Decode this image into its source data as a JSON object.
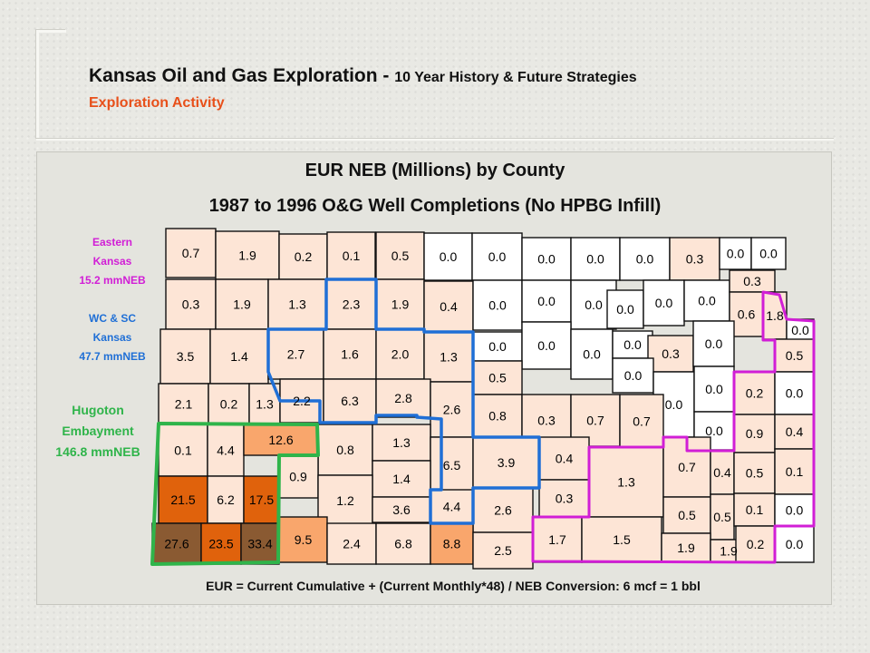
{
  "title": {
    "main": "Kansas Oil and Gas Exploration - ",
    "sub": "10 Year History & Future Strategies",
    "subtitle": "Exploration Activity"
  },
  "map": {
    "title_line1": "EUR NEB (Millions) by County",
    "title_line2": "1987 to 1996 O&G Well Completions (No HPBG Infill)",
    "formula": "EUR = Current Cumulative + (Current Monthly*48) / NEB Conversion: 6 mcf = 1 bbl"
  },
  "regions": {
    "eastern": {
      "lines": [
        "Eastern",
        "Kansas",
        "15.2 mmNEB"
      ],
      "color": "#d11ed6"
    },
    "wcsc": {
      "lines": [
        "WC & SC",
        "Kansas",
        "47.7 mmNEB"
      ],
      "color": "#1f6fd6"
    },
    "hugoton": {
      "lines": [
        "Hugoton",
        "Embayment",
        "146.8 mmNEB"
      ],
      "color": "#2fb44a"
    }
  },
  "legend_colors": {
    "none": "#ffffff",
    "low": "#fde5d6",
    "mid": "#f9a66c",
    "high": "#e0620c",
    "top": "#8a5a32"
  },
  "counties": [
    {
      "value": "0.7",
      "level": "low"
    },
    {
      "value": "1.9",
      "level": "low"
    },
    {
      "value": "0.2",
      "level": "low"
    },
    {
      "value": "0.1",
      "level": "low"
    },
    {
      "value": "0.5",
      "level": "low"
    },
    {
      "value": "0.0",
      "level": "none"
    },
    {
      "value": "0.0",
      "level": "none"
    },
    {
      "value": "0.0",
      "level": "none"
    },
    {
      "value": "0.0",
      "level": "none"
    },
    {
      "value": "0.0",
      "level": "none"
    },
    {
      "value": "0.3",
      "level": "low"
    },
    {
      "value": "0.0",
      "level": "none"
    },
    {
      "value": "0.0",
      "level": "none"
    },
    {
      "value": "0.3",
      "level": "low"
    },
    {
      "value": "1.9",
      "level": "low"
    },
    {
      "value": "1.3",
      "level": "low"
    },
    {
      "value": "2.3",
      "level": "low"
    },
    {
      "value": "1.9",
      "level": "low"
    },
    {
      "value": "0.4",
      "level": "low"
    },
    {
      "value": "0.0",
      "level": "none"
    },
    {
      "value": "0.0",
      "level": "none"
    },
    {
      "value": "0.0",
      "level": "none"
    },
    {
      "value": "0.0",
      "level": "none"
    },
    {
      "value": "0.0",
      "level": "none"
    },
    {
      "value": "0.0",
      "level": "none"
    },
    {
      "value": "0.3",
      "level": "low"
    },
    {
      "value": "0.6",
      "level": "low"
    },
    {
      "value": "1.8",
      "level": "low"
    },
    {
      "value": "0.0",
      "level": "none"
    },
    {
      "value": "3.5",
      "level": "low"
    },
    {
      "value": "1.4",
      "level": "low"
    },
    {
      "value": "2.7",
      "level": "low"
    },
    {
      "value": "1.6",
      "level": "low"
    },
    {
      "value": "2.0",
      "level": "low"
    },
    {
      "value": "1.3",
      "level": "low"
    },
    {
      "value": "0.0",
      "level": "none"
    },
    {
      "value": "0.0",
      "level": "none"
    },
    {
      "value": "0.0",
      "level": "none"
    },
    {
      "value": "0.0",
      "level": "none"
    },
    {
      "value": "0.3",
      "level": "low"
    },
    {
      "value": "0.0",
      "level": "none"
    },
    {
      "value": "0.5",
      "level": "low"
    },
    {
      "value": "2.1",
      "level": "low"
    },
    {
      "value": "0.2",
      "level": "low"
    },
    {
      "value": "1.3",
      "level": "low"
    },
    {
      "value": "2.2",
      "level": "low"
    },
    {
      "value": "6.3",
      "level": "low"
    },
    {
      "value": "2.8",
      "level": "low"
    },
    {
      "value": "2.6",
      "level": "low"
    },
    {
      "value": "0.5",
      "level": "low"
    },
    {
      "value": "0.0",
      "level": "none"
    },
    {
      "value": "0.0",
      "level": "none"
    },
    {
      "value": "0.0",
      "level": "none"
    },
    {
      "value": "0.2",
      "level": "low"
    },
    {
      "value": "0.0",
      "level": "none"
    },
    {
      "value": "0.8",
      "level": "low"
    },
    {
      "value": "0.3",
      "level": "low"
    },
    {
      "value": "0.7",
      "level": "low"
    },
    {
      "value": "0.7",
      "level": "low"
    },
    {
      "value": "0.0",
      "level": "none"
    },
    {
      "value": "0.9",
      "level": "low"
    },
    {
      "value": "0.4",
      "level": "low"
    },
    {
      "value": "0.1",
      "level": "low"
    },
    {
      "value": "4.4",
      "level": "low"
    },
    {
      "value": "12.6",
      "level": "mid"
    },
    {
      "value": "0.8",
      "level": "low"
    },
    {
      "value": "1.3",
      "level": "low"
    },
    {
      "value": "6.5",
      "level": "low"
    },
    {
      "value": "3.9",
      "level": "low"
    },
    {
      "value": "0.4",
      "level": "low"
    },
    {
      "value": "1.3",
      "level": "low"
    },
    {
      "value": "0.7",
      "level": "low"
    },
    {
      "value": "0.4",
      "level": "low"
    },
    {
      "value": "0.5",
      "level": "low"
    },
    {
      "value": "0.1",
      "level": "low"
    },
    {
      "value": "0.9",
      "level": "low"
    },
    {
      "value": "1.4",
      "level": "low"
    },
    {
      "value": "21.5",
      "level": "high"
    },
    {
      "value": "6.2",
      "level": "low"
    },
    {
      "value": "17.5",
      "level": "high"
    },
    {
      "value": "1.2",
      "level": "low"
    },
    {
      "value": "3.6",
      "level": "low"
    },
    {
      "value": "4.4",
      "level": "low"
    },
    {
      "value": "2.6",
      "level": "low"
    },
    {
      "value": "0.3",
      "level": "low"
    },
    {
      "value": "0.5",
      "level": "low"
    },
    {
      "value": "0.5",
      "level": "low"
    },
    {
      "value": "0.1",
      "level": "low"
    },
    {
      "value": "0.0",
      "level": "none"
    },
    {
      "value": "27.6",
      "level": "top"
    },
    {
      "value": "23.5",
      "level": "high"
    },
    {
      "value": "33.4",
      "level": "top"
    },
    {
      "value": "9.5",
      "level": "mid"
    },
    {
      "value": "2.4",
      "level": "low"
    },
    {
      "value": "6.8",
      "level": "low"
    },
    {
      "value": "8.8",
      "level": "mid"
    },
    {
      "value": "2.5",
      "level": "low"
    },
    {
      "value": "1.7",
      "level": "low"
    },
    {
      "value": "1.5",
      "level": "low"
    },
    {
      "value": "1.9",
      "level": "low"
    },
    {
      "value": "1.9",
      "level": "low"
    },
    {
      "value": "0.2",
      "level": "low"
    },
    {
      "value": "0.0",
      "level": "none"
    }
  ]
}
